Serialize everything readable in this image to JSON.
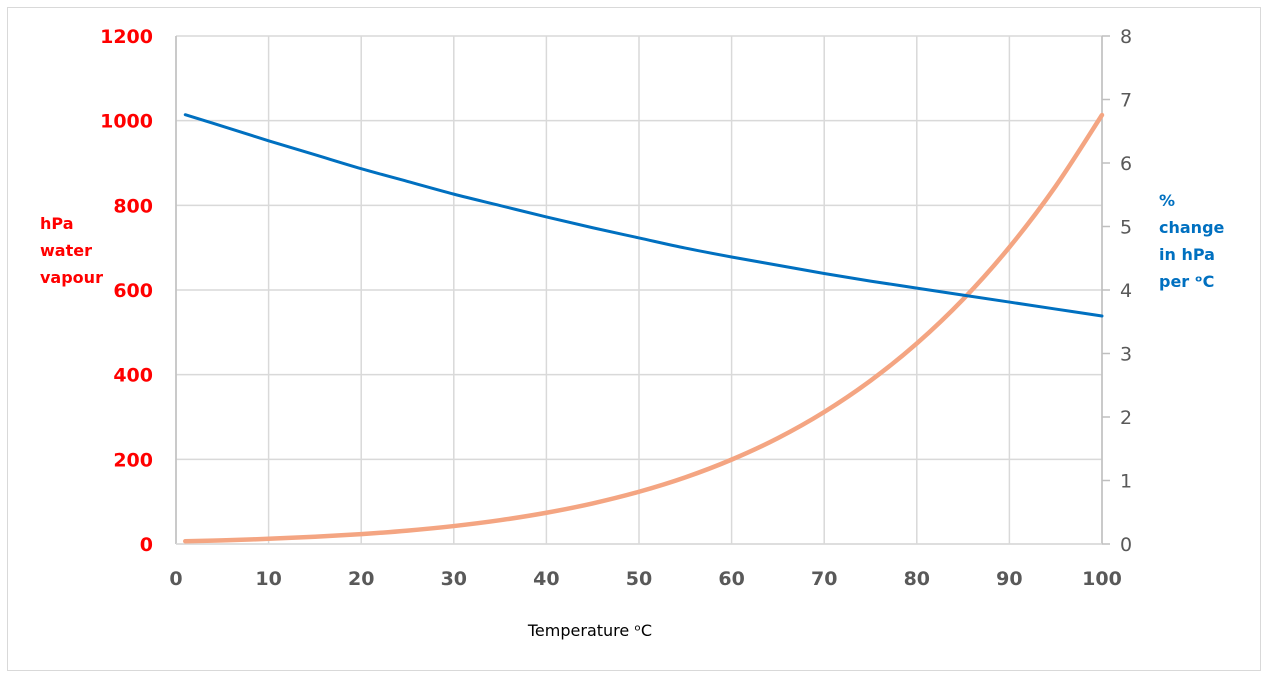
{
  "chart_data": {
    "type": "line",
    "title": "",
    "xlabel": "Temperature ᵒC",
    "ylabel_left": [
      "hPa",
      "water",
      "vapour"
    ],
    "ylabel_right": [
      "%",
      "change",
      "in hPa",
      "per ᵒC"
    ],
    "xlim": [
      0,
      100
    ],
    "ylim_left": [
      0,
      1200
    ],
    "ylim_right": [
      0,
      8
    ],
    "x_ticks": [
      "0",
      "10",
      "20",
      "30",
      "40",
      "50",
      "60",
      "70",
      "80",
      "90",
      "100"
    ],
    "y_left_ticks": [
      "0",
      "200",
      "400",
      "600",
      "800",
      "1000",
      "1200"
    ],
    "y_right_ticks": [
      "0",
      "1",
      "2",
      "3",
      "4",
      "5",
      "6",
      "7",
      "8"
    ],
    "grid": true,
    "x": [
      1,
      5,
      10,
      15,
      20,
      25,
      30,
      35,
      40,
      45,
      50,
      55,
      60,
      65,
      70,
      75,
      80,
      85,
      90,
      95,
      100
    ],
    "series": [
      {
        "name": "hPa water vapour",
        "axis": "left",
        "color": "#f4a582",
        "values": [
          6.6,
          8.7,
          12.3,
          17.0,
          23.4,
          31.7,
          42.4,
          56.2,
          73.8,
          95.9,
          123.4,
          157.4,
          199.3,
          250.1,
          311.8,
          385.8,
          473.7,
          578.0,
          701.1,
          845.3,
          1013.3
        ]
      },
      {
        "name": "% change in hPa per ᵒC",
        "axis": "right",
        "color": "#0070c0",
        "values": [
          6.76,
          6.58,
          6.35,
          6.13,
          5.91,
          5.71,
          5.51,
          5.33,
          5.15,
          4.98,
          4.82,
          4.66,
          4.52,
          4.39,
          4.26,
          4.14,
          4.03,
          3.92,
          3.81,
          3.7,
          3.59
        ]
      }
    ]
  }
}
